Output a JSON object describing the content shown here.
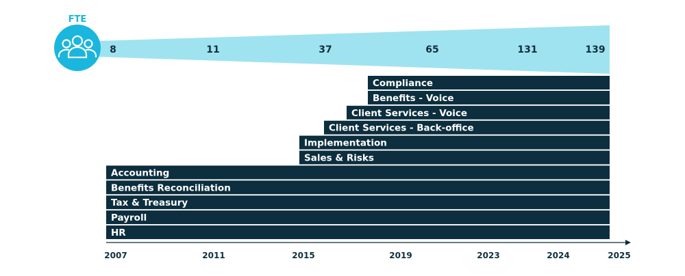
{
  "chart_data": {
    "type": "bar",
    "fte_label": "FTE",
    "fte_values": [
      "8",
      "11",
      "37",
      "65",
      "131",
      "139"
    ],
    "years": [
      "2007",
      "2011",
      "2015",
      "2019",
      "2023",
      "2024",
      "2025"
    ],
    "services": [
      {
        "name": "Compliance",
        "start": 2018
      },
      {
        "name": "Benefits - Voice",
        "start": 2018
      },
      {
        "name": "Client Services - Voice",
        "start": 2017
      },
      {
        "name": "Client Services - Back-office",
        "start": 2016
      },
      {
        "name": "Implementation",
        "start": 2015
      },
      {
        "name": "Sales & Risks",
        "start": 2015
      },
      {
        "name": "Accounting",
        "start": 2007
      },
      {
        "name": "Benefits Reconciliation",
        "start": 2007
      },
      {
        "name": "Tax & Treasury",
        "start": 2007
      },
      {
        "name": "Payroll",
        "start": 2007
      },
      {
        "name": "HR",
        "start": 2007
      }
    ],
    "end": 2025
  },
  "colors": {
    "bar": "#0c2e3e",
    "band": "#9fe3f0",
    "accent": "#1bb6dd",
    "axis": "#0c2e3e"
  },
  "icon": "team-icon"
}
